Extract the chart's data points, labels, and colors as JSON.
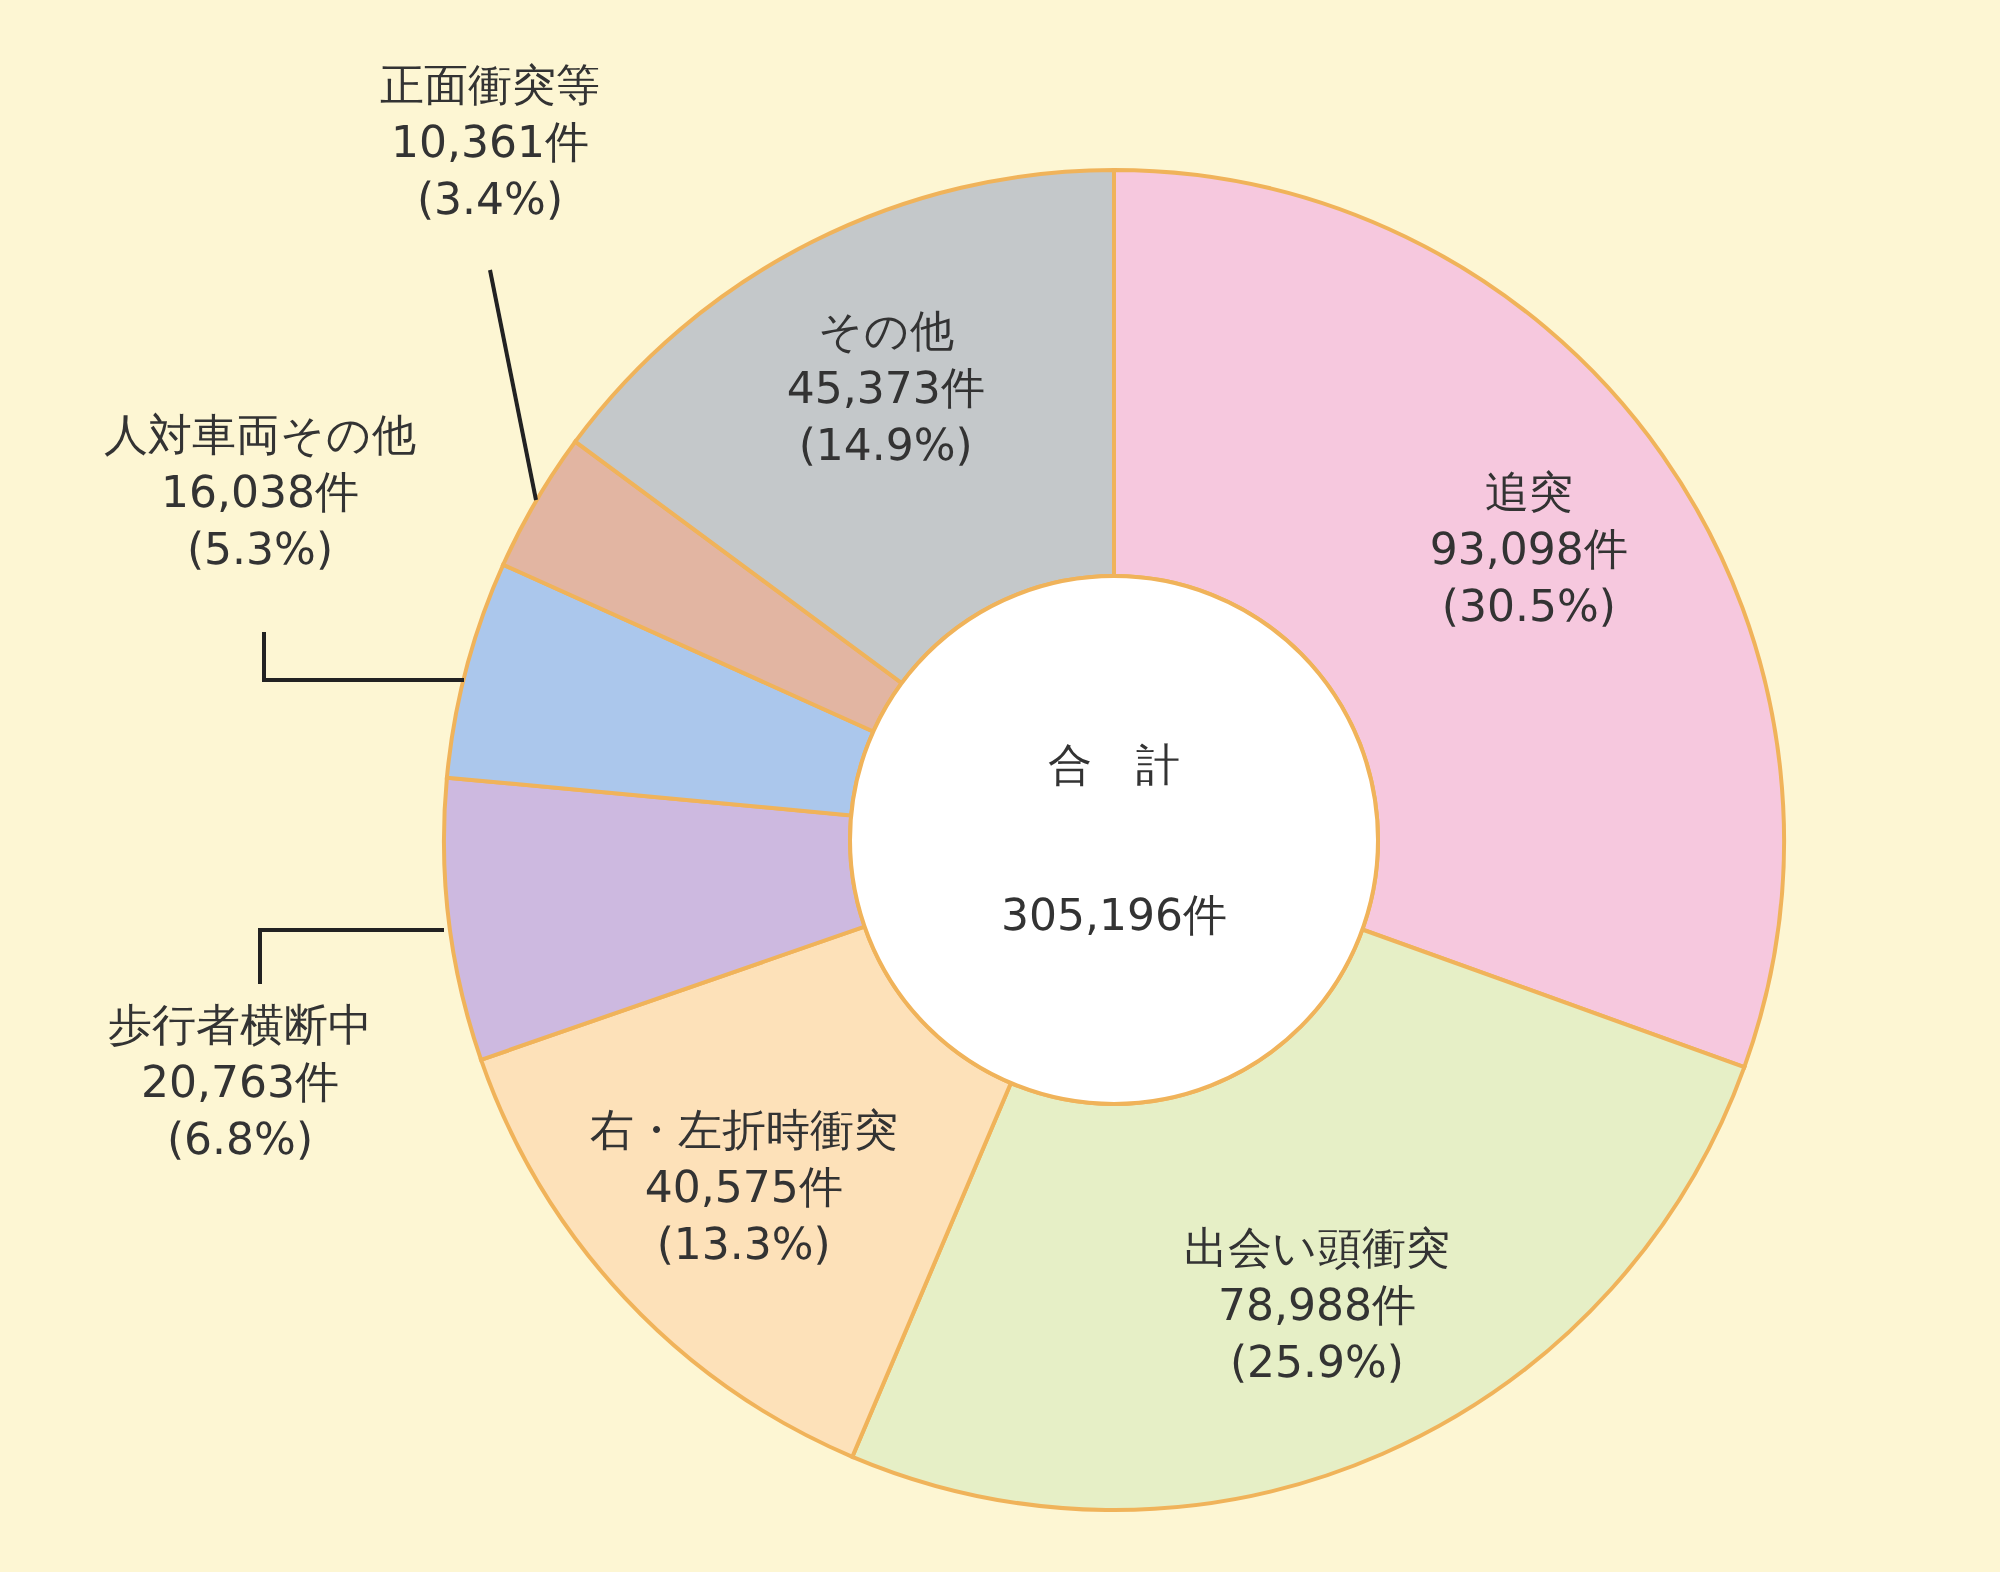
{
  "chart_data": {
    "type": "donut",
    "categories": [
      "追突",
      "出会い頭衝突",
      "右・左折時衝突",
      "歩行者横断中",
      "人対車両その他",
      "正面衝突等",
      "その他"
    ],
    "values": [
      93098,
      78988,
      40575,
      20763,
      16038,
      10361,
      45373
    ],
    "value_labels": [
      "93,098件\n(30.5%)",
      "78,988件\n(25.9%)",
      "40,575件\n(13.3%)",
      "20,763件\n(6.8%)",
      "16,038件\n(5.3%)",
      "10,361件\n(3.4%)",
      "45,373件\n(14.9%)"
    ],
    "colors": [
      "#f6c8de",
      "#e6efc6",
      "#fde1b9",
      "#cdb9e0",
      "#abc7ec",
      "#e2b5a2",
      "#c4c8ca"
    ],
    "annotations": [
      "合　計",
      "305,196件"
    ]
  }
}
